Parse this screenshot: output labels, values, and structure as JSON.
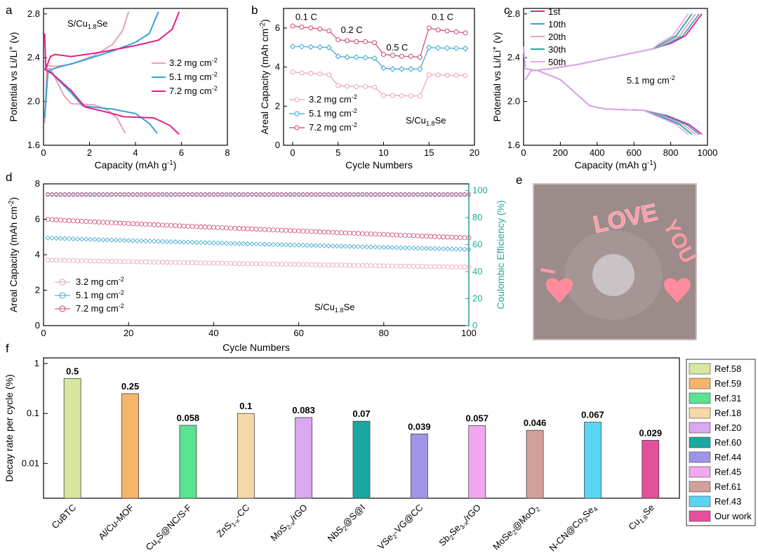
{
  "colors": {
    "c32": "#e8a2b4",
    "c51": "#35a3d6",
    "c72": "#e61f86",
    "c72line": "#d0446c",
    "ce": "#2aa89a",
    "photo_bg": "#9c8b89"
  },
  "chart_data": [
    {
      "panel": "a",
      "type": "line",
      "annotation": "S/Cu1.8Se",
      "xlabel": "Capacity (mAh g-1)",
      "ylabel": "Potential vs Li/Li+ (v)",
      "xlim": [
        0,
        8
      ],
      "ylim": [
        1.6,
        2.85
      ],
      "xticks": [
        "0",
        "2",
        "4",
        "6",
        "8"
      ],
      "yticks": [
        "1.6",
        "2.0",
        "2.4",
        "2.8"
      ],
      "legend_position": "right",
      "series": [
        {
          "name": "3.2 mg cm-2",
          "key": "c32",
          "charge": [
            [
              0.05,
              1.8
            ],
            [
              0.15,
              2.33
            ],
            [
              0.5,
              2.32
            ],
            [
              1.2,
              2.34
            ],
            [
              2.2,
              2.42
            ],
            [
              3.0,
              2.52
            ],
            [
              3.45,
              2.65
            ],
            [
              3.7,
              2.82
            ]
          ],
          "discharge": [
            [
              0.0,
              2.3
            ],
            [
              0.3,
              2.3
            ],
            [
              0.9,
              2.05
            ],
            [
              1.2,
              1.98
            ],
            [
              2.2,
              1.97
            ],
            [
              2.8,
              1.92
            ],
            [
              3.2,
              1.85
            ],
            [
              3.55,
              1.71
            ]
          ]
        },
        {
          "name": "5.1 mg cm-2",
          "key": "c51",
          "charge": [
            [
              0.05,
              1.85
            ],
            [
              0.2,
              2.28
            ],
            [
              0.6,
              2.31
            ],
            [
              1.5,
              2.36
            ],
            [
              3.0,
              2.46
            ],
            [
              4.0,
              2.54
            ],
            [
              4.6,
              2.62
            ],
            [
              5.0,
              2.82
            ]
          ],
          "discharge": [
            [
              0.0,
              2.3
            ],
            [
              0.3,
              2.27
            ],
            [
              1.2,
              2.08
            ],
            [
              1.7,
              1.96
            ],
            [
              3.0,
              1.93
            ],
            [
              4.0,
              1.89
            ],
            [
              4.6,
              1.8
            ],
            [
              4.95,
              1.71
            ]
          ]
        },
        {
          "name": "7.2 mg cm-2",
          "key": "c72",
          "charge": [
            [
              0.05,
              2.62
            ],
            [
              0.1,
              2.3
            ],
            [
              0.3,
              2.41
            ],
            [
              0.5,
              2.43
            ],
            [
              1.2,
              2.41
            ],
            [
              2.5,
              2.45
            ],
            [
              4.0,
              2.51
            ],
            [
              5.0,
              2.56
            ],
            [
              5.6,
              2.66
            ],
            [
              5.9,
              2.82
            ]
          ],
          "discharge": [
            [
              0.0,
              2.3
            ],
            [
              0.4,
              2.25
            ],
            [
              1.2,
              2.1
            ],
            [
              1.8,
              1.95
            ],
            [
              2.8,
              1.9
            ],
            [
              3.5,
              1.86
            ],
            [
              4.8,
              1.85
            ],
            [
              5.5,
              1.78
            ],
            [
              5.9,
              1.7
            ]
          ]
        }
      ]
    },
    {
      "panel": "b",
      "type": "scatter",
      "annotation": "S/Cu1.8Se",
      "xlabel": "Cycle Numbers",
      "ylabel": "Areal Capacity (mAh cm-2)",
      "xlim": [
        -1,
        20
      ],
      "ylim": [
        0,
        7
      ],
      "xticks": [
        "0",
        "5",
        "10",
        "15",
        "20"
      ],
      "yticks": [
        "0",
        "2",
        "4",
        "6"
      ],
      "rate_labels": [
        {
          "text": "0.1 C",
          "x": 1.5,
          "y": 6.4
        },
        {
          "text": "0.2 C",
          "x": 6.5,
          "y": 5.75
        },
        {
          "text": "0.5 C",
          "x": 11.5,
          "y": 4.85
        },
        {
          "text": "0.1 C",
          "x": 16.5,
          "y": 6.4
        }
      ],
      "legend_position": "bottom-left",
      "series": [
        {
          "name": "3.2 mg cm-2",
          "key": "c32",
          "values": [
            3.75,
            3.7,
            3.68,
            3.65,
            3.6,
            3.05,
            3.02,
            3.0,
            3.0,
            2.98,
            2.55,
            2.55,
            2.53,
            2.53,
            2.52,
            3.6,
            3.6,
            3.58,
            3.58,
            3.57
          ]
        },
        {
          "name": "5.1 mg cm-2",
          "key": "c51",
          "values": [
            5.05,
            5.05,
            5.03,
            5.02,
            5.0,
            4.55,
            4.5,
            4.5,
            4.48,
            4.45,
            3.95,
            3.9,
            3.9,
            3.9,
            3.9,
            5.0,
            4.98,
            4.97,
            4.96,
            4.95
          ]
        },
        {
          "name": "7.2 mg cm-2",
          "key": "c72line",
          "values": [
            6.1,
            6.05,
            6.0,
            5.95,
            5.85,
            5.4,
            5.35,
            5.3,
            5.3,
            5.25,
            4.65,
            4.6,
            4.55,
            4.55,
            4.5,
            6.0,
            5.9,
            5.85,
            5.8,
            5.75
          ]
        }
      ]
    },
    {
      "panel": "c",
      "type": "line",
      "annotation": "5.1 mg cm-2",
      "xlabel": "Capacity (mAh g-1)",
      "ylabel": "Potential vs Li/Li+ (v)",
      "xlim": [
        0,
        1000
      ],
      "ylim": [
        1.6,
        2.85
      ],
      "xticks": [
        "0",
        "200",
        "400",
        "600",
        "800",
        "1000"
      ],
      "yticks": [
        "1.6",
        "2.0",
        "2.4",
        "2.8"
      ],
      "legend_position": "top-left",
      "series": [
        {
          "name": "1st",
          "key": "c72",
          "end": 970
        },
        {
          "name": "10th",
          "key": "c51",
          "end": 955
        },
        {
          "name": "20th",
          "key": "c32",
          "end": 935
        },
        {
          "name": "30th",
          "key": "ce",
          "end": 915
        },
        {
          "name": "50th",
          "key": "lavender",
          "end": 895
        }
      ]
    },
    {
      "panel": "d",
      "type": "scatter",
      "annotation": "S/Cu1.8Se",
      "xlabel": "Cycle Numbers",
      "ylabel": "Areal Capacity (mAh cm-2)",
      "y2label": "Coulombic Efficiency (%)",
      "xlim": [
        0,
        100
      ],
      "ylim": [
        0,
        8
      ],
      "y2lim": [
        0,
        105
      ],
      "xticks": [
        "0",
        "20",
        "40",
        "60",
        "80",
        "100"
      ],
      "yticks": [
        "0",
        "2",
        "4",
        "6",
        "8"
      ],
      "y2ticks": [
        "0",
        "20",
        "40",
        "60",
        "80",
        "100"
      ],
      "legend_position": "bottom-left",
      "series": [
        {
          "name": "3.2 mg cm-2",
          "key": "c32",
          "start": 3.7,
          "end": 3.3
        },
        {
          "name": "5.1 mg cm-2",
          "key": "c51",
          "start": 4.95,
          "end": 4.3
        },
        {
          "name": "7.2 mg cm-2",
          "key": "c72line",
          "start": 6.0,
          "end": 4.95
        }
      ],
      "coulombic_efficiency": 97
    },
    {
      "panel": "f",
      "type": "bar",
      "ylabel": "Decay rate per cycle (%)",
      "yscale": "log",
      "ylim": [
        0.002,
        1.3
      ],
      "yticks": [
        "0.01",
        "0.1",
        "1"
      ],
      "legend_position": "right",
      "categories": [
        "CuBTC",
        "Al/Cu-MOF",
        "CuxS@NC/S-F",
        "ZnS1-x-CC",
        "MoS2-x/rGO",
        "NbS2@S@I",
        "VSe2-VG@CC",
        "Sb2Se3-x/rGO",
        "MoSe2@MoO2",
        "N-CN@Co3Se4",
        "Cu1.8Se"
      ],
      "values": [
        0.5,
        0.25,
        0.058,
        0.1,
        0.083,
        0.07,
        0.039,
        0.057,
        0.046,
        0.067,
        0.029
      ],
      "value_labels": [
        "0.5",
        "0.25",
        "0.058",
        "0.1",
        "0.083",
        "0.07",
        "0.039",
        "0.057",
        "0.046",
        "0.067",
        "0.029"
      ],
      "legend": [
        "Ref.58",
        "Ref.59",
        "Ref.31",
        "Ref.18",
        "Ref.20",
        "Ref.60",
        "Ref.44",
        "Ref.45",
        "Ref.61",
        "Ref.43",
        "Our work"
      ],
      "bar_colors": [
        "#d6e8a0",
        "#f5b56a",
        "#5ae391",
        "#f7d8a8",
        "#d8a8f0",
        "#1aa8a0",
        "#9d96e8",
        "#f2a8f0",
        "#d4a09a",
        "#5ad6f2",
        "#e5509d"
      ]
    }
  ],
  "panel_labels": {
    "a": "a",
    "b": "b",
    "c": "c",
    "d": "d",
    "e": "e",
    "f": "f"
  },
  "photo": {
    "text_love": "LOVE",
    "text_i": "I",
    "text_you": "YOU"
  }
}
